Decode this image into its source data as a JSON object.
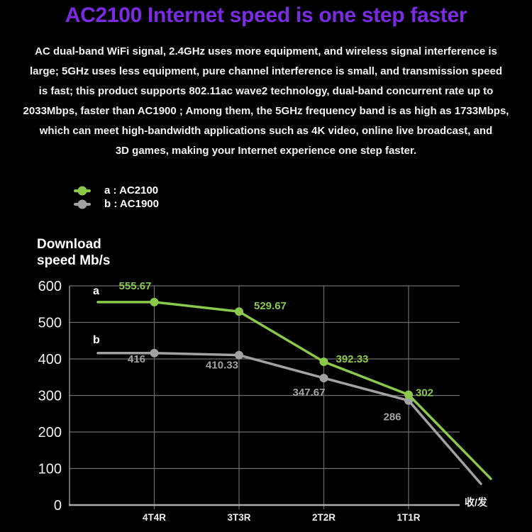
{
  "title": "AC2100 Internet speed is one step faster",
  "intro": {
    "lines": [
      "AC dual-band WiFi signal, 2.4GHz uses more equipment, and wireless signal interference is",
      "large; 5GHz uses less equipment, pure channel interference is small, and transmission speed",
      "is fast; this product supports 802.11ac wave2 technology, dual-band concurrent rate up to",
      "2033Mbps, faster than AC1900 ; Among them, the 5GHz frequency band is as high as 1733Mbps,",
      "which can meet high-bandwidth applications such as 4K video, online live broadcast, and",
      "3D games, making your Internet experience one step faster."
    ]
  },
  "legend": {
    "items": [
      {
        "label": "a : AC2100",
        "color": "#8cc84b"
      },
      {
        "label": "b : AC1900",
        "color": "#a2a2a2"
      }
    ]
  },
  "colors": {
    "background": "#000000",
    "title": "#7b2be4",
    "body_text": "#f2f2f2",
    "gridline": "#6c6c6c",
    "axis": "#ababab",
    "series_a": "#8cc84b",
    "series_b": "#a2a2a2"
  },
  "chart_data": {
    "type": "line",
    "ylabel": "Download speed Mb/s",
    "ylabel_lines": [
      "Download",
      "speed Mb/s"
    ],
    "x_axis_note": "收/发",
    "categories": [
      "4T4R",
      "3T3R",
      "2T2R",
      "1T1R"
    ],
    "ylim": [
      0,
      600
    ],
    "yticks": [
      600,
      500,
      400,
      300,
      200,
      100,
      0
    ],
    "grid": true,
    "legend_position": "top-left above plot",
    "series": [
      {
        "name": "a : AC2100",
        "letter": "a",
        "color": "#8cc84b",
        "values": [
          555.67,
          529.67,
          392.33,
          302
        ],
        "trail_off_value": 72
      },
      {
        "name": "b : AC1900",
        "letter": "b",
        "color": "#a2a2a2",
        "values": [
          416,
          410.33,
          347.67,
          286
        ],
        "trail_off_value": 58
      }
    ]
  }
}
